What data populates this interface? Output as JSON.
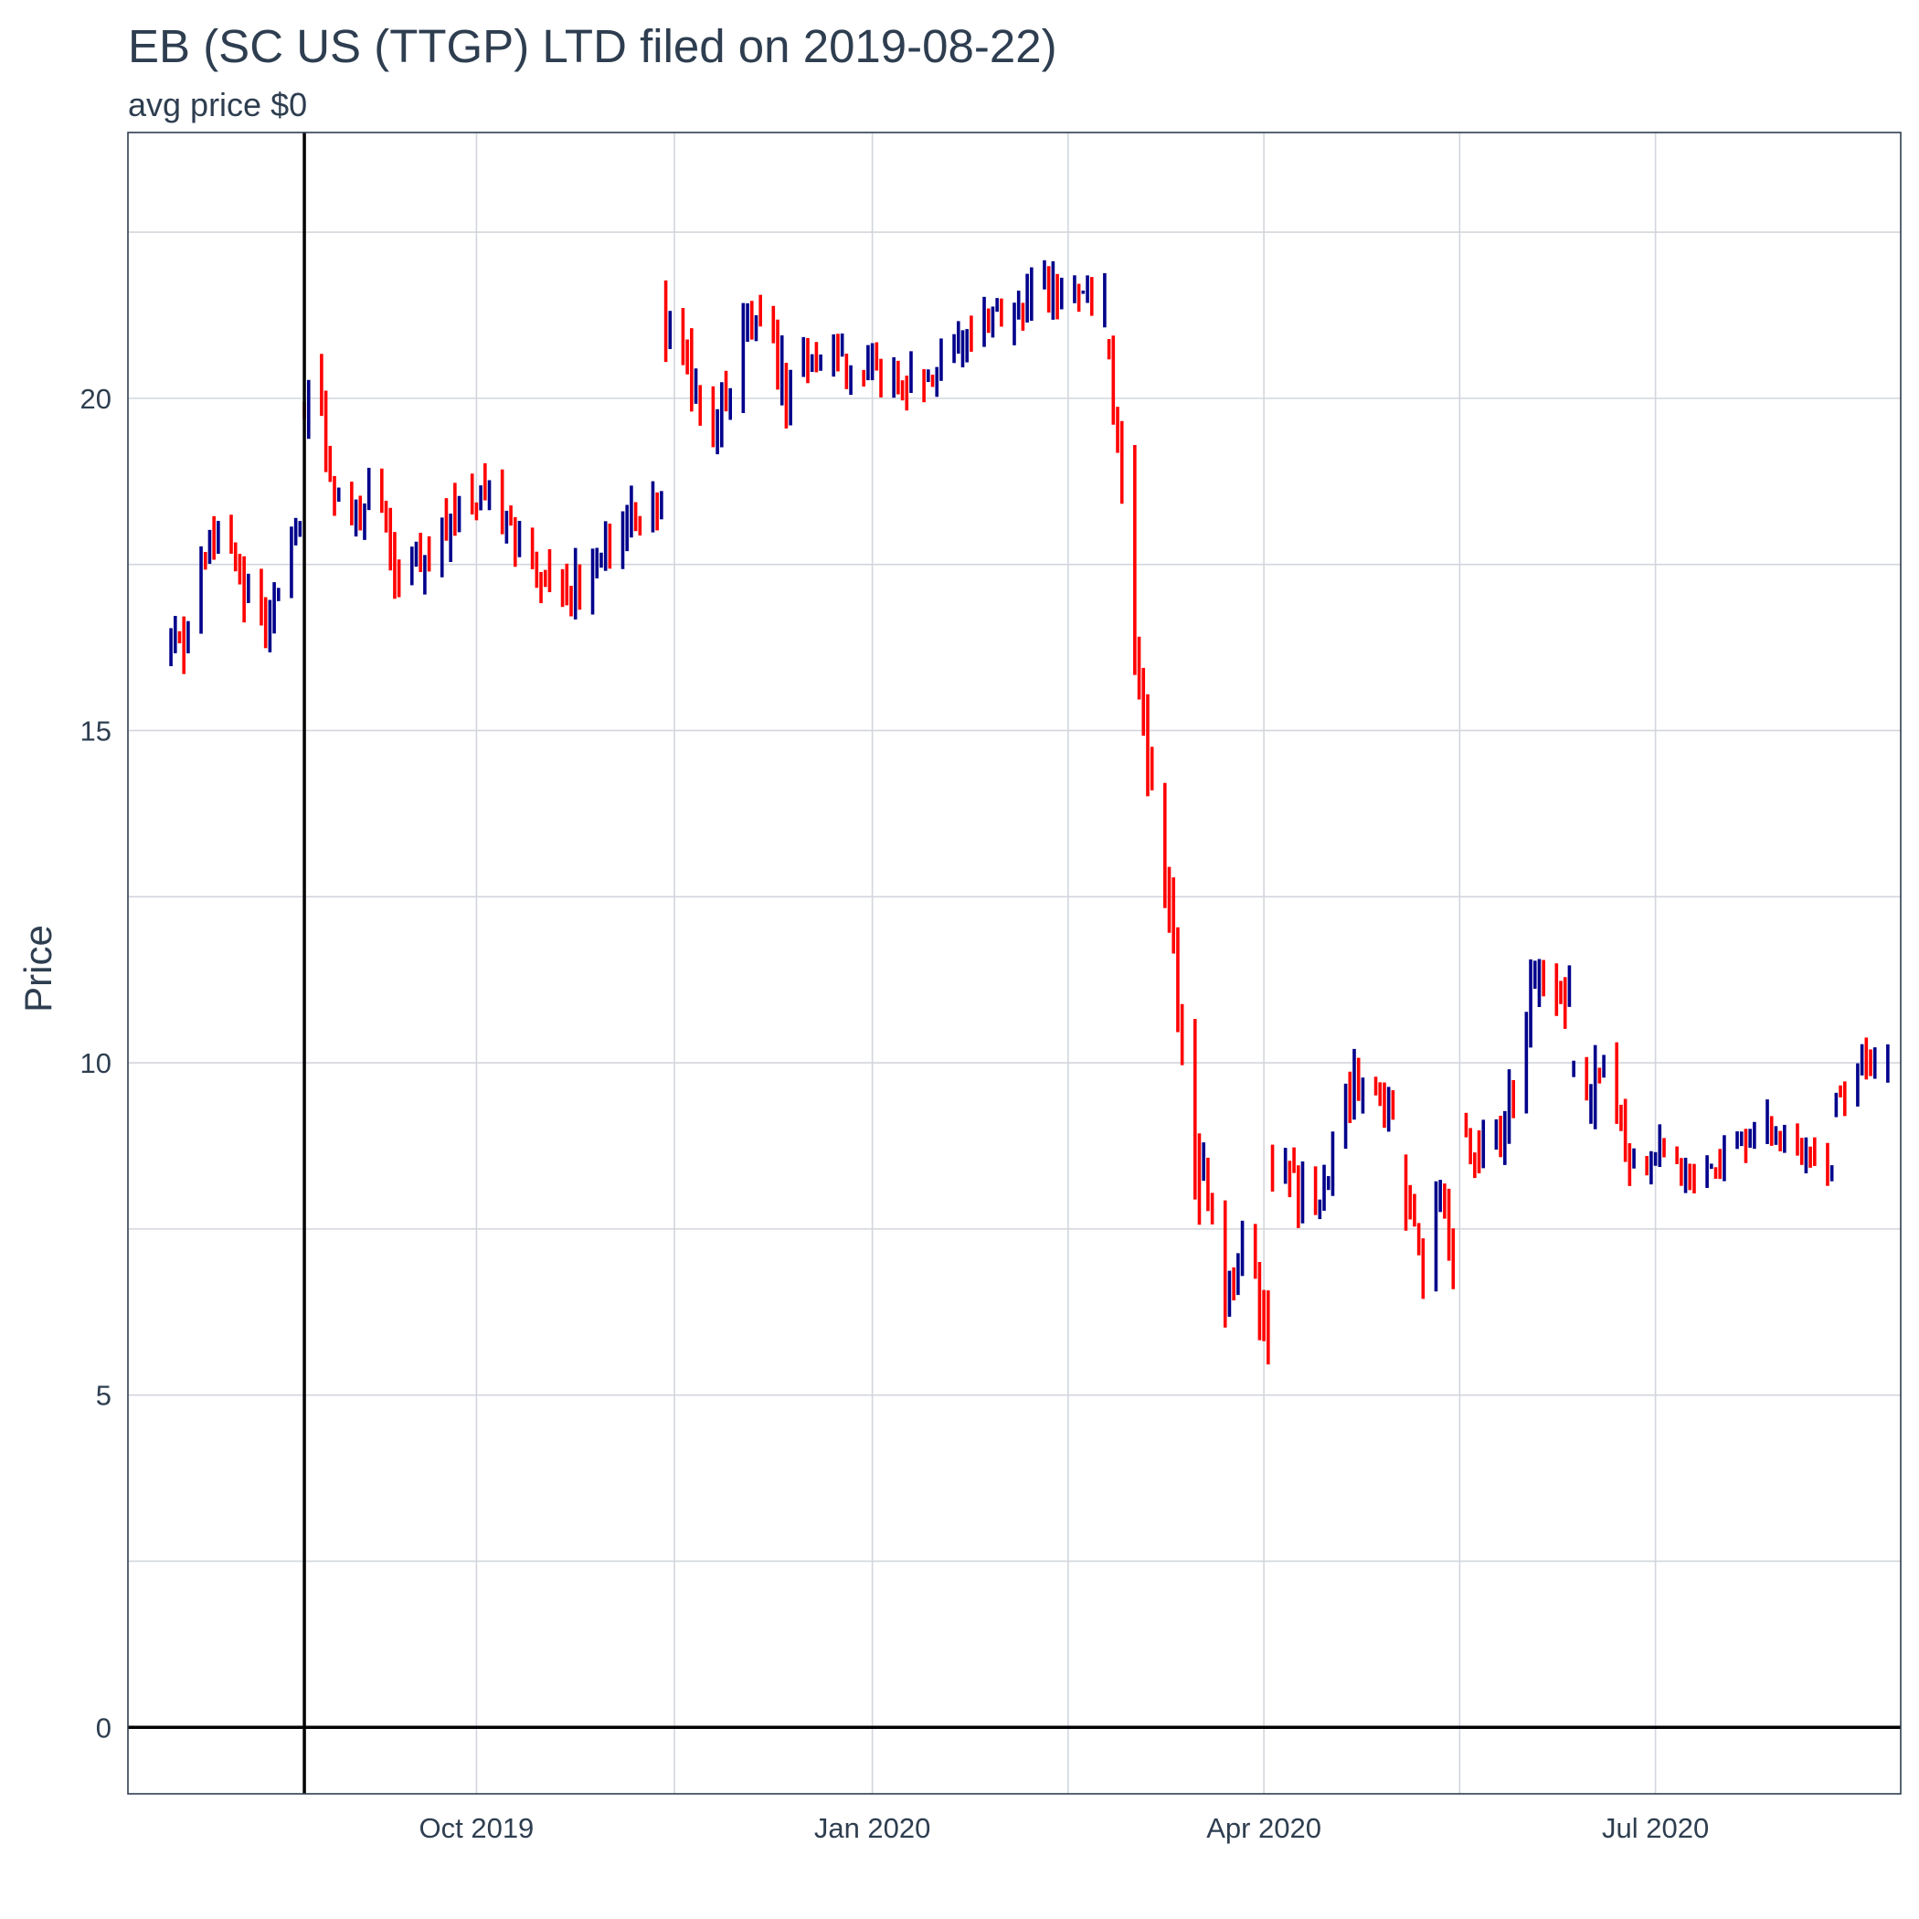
{
  "chart_data": {
    "type": "ohlc",
    "title": "EB (SC US (TTGP)  LTD filed on 2019-08-22)",
    "subtitle": "avg price $0",
    "ylabel": "Price",
    "xlabel": "",
    "ylim": [
      -1,
      24
    ],
    "y_ticks": [
      0,
      5,
      10,
      15,
      20
    ],
    "x_range": [
      "2019-07-12",
      "2020-08-27"
    ],
    "x_ticks": [
      {
        "date": "2019-10-01",
        "label": "Oct 2019"
      },
      {
        "date": "2020-01-01",
        "label": "Jan 2020"
      },
      {
        "date": "2020-04-01",
        "label": "Apr 2020"
      },
      {
        "date": "2020-07-01",
        "label": "Jul 2020"
      }
    ],
    "filing_date": "2019-08-22",
    "reference_hline": 0,
    "colors": {
      "up": "#00008b",
      "down": "#ff0000",
      "reference": "#000000",
      "grid": "#d2d6dc",
      "frame": "#2e3e50",
      "text": "#2e3e50"
    },
    "segments": [
      {
        "start": "2019-07-22",
        "end": "2019-08-21",
        "from": 17.0,
        "to": 17.6,
        "amp": 0.75,
        "vol": 0.55
      },
      {
        "start": "2019-08-22",
        "end": "2019-09-12",
        "from": 19.6,
        "to": 17.5,
        "amp": 0.55,
        "vol": 0.5
      },
      {
        "start": "2019-09-13",
        "end": "2019-11-13",
        "from": 17.8,
        "to": 17.8,
        "amp": 0.7,
        "vol": 0.55
      },
      {
        "start": "2019-11-14",
        "end": "2019-12-13",
        "from": 20.3,
        "to": 20.7,
        "amp": 0.8,
        "vol": 0.6
      },
      {
        "start": "2019-12-16",
        "end": "2020-02-24",
        "from": 20.2,
        "to": 21.6,
        "amp": 0.35,
        "vol": 0.5
      },
      {
        "start": "2020-02-25",
        "end": "2020-03-17",
        "from": 20.2,
        "to": 7.8,
        "amp": 0.4,
        "vol": 0.7
      },
      {
        "start": "2020-03-18",
        "end": "2020-04-02",
        "from": 7.8,
        "to": 6.2,
        "amp": 0.7,
        "vol": 0.6
      },
      {
        "start": "2020-04-03",
        "end": "2020-05-01",
        "from": 7.8,
        "to": 9.7,
        "amp": 0.6,
        "vol": 0.55
      },
      {
        "start": "2020-05-04",
        "end": "2020-05-15",
        "from": 7.5,
        "to": 7.2,
        "amp": 0.5,
        "vol": 0.6
      },
      {
        "start": "2020-05-18",
        "end": "2020-06-11",
        "from": 8.2,
        "to": 11.8,
        "amp": 0.6,
        "vol": 0.55
      },
      {
        "start": "2020-06-12",
        "end": "2020-06-30",
        "from": 10.2,
        "to": 8.4,
        "amp": 0.5,
        "vol": 0.55
      },
      {
        "start": "2020-07-01",
        "end": "2020-08-11",
        "from": 8.5,
        "to": 8.9,
        "amp": 0.3,
        "vol": 0.4
      },
      {
        "start": "2020-08-12",
        "end": "2020-08-24",
        "from": 9.5,
        "to": 10.2,
        "amp": 0.3,
        "vol": 0.45
      }
    ]
  }
}
